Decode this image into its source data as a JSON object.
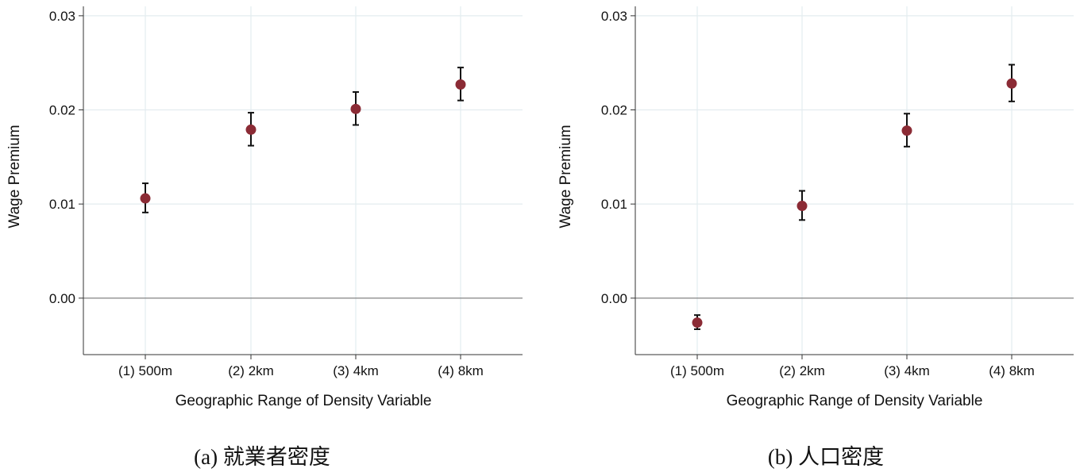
{
  "chart_data": [
    {
      "type": "scatter",
      "caption": "(a)  就業者密度",
      "xlabel": "Geographic Range of Density Variable",
      "ylabel": "Wage Premium",
      "categories": [
        "(1) 500m",
        "(2) 2km",
        "(3) 4km",
        "(4) 8km"
      ],
      "values": [
        0.0106,
        0.0179,
        0.0201,
        0.0227
      ],
      "ci_low": [
        0.0091,
        0.0162,
        0.0184,
        0.021
      ],
      "ci_high": [
        0.0122,
        0.0197,
        0.0219,
        0.0245
      ],
      "yticks": [
        0.0,
        0.01,
        0.02,
        0.03
      ],
      "ytick_labels": [
        "0.00",
        "0.01",
        "0.02",
        "0.03"
      ],
      "ylim": [
        -0.006,
        0.031
      ],
      "grid": true,
      "reference_line": 0
    },
    {
      "type": "scatter",
      "caption": "(b)  人口密度",
      "xlabel": "Geographic Range of Density Variable",
      "ylabel": "Wage Premium",
      "categories": [
        "(1) 500m",
        "(2) 2km",
        "(3) 4km",
        "(4) 8km"
      ],
      "values": [
        -0.0026,
        0.0098,
        0.0178,
        0.0228
      ],
      "ci_low": [
        -0.0033,
        0.0083,
        0.0161,
        0.0209
      ],
      "ci_high": [
        -0.0018,
        0.0114,
        0.0196,
        0.0248
      ],
      "yticks": [
        0.0,
        0.01,
        0.02,
        0.03
      ],
      "ytick_labels": [
        "0.00",
        "0.01",
        "0.02",
        "0.03"
      ],
      "ylim": [
        -0.006,
        0.031
      ],
      "grid": true,
      "reference_line": 0
    }
  ],
  "colors": {
    "marker": "#8b2b35",
    "errorbar": "#111111",
    "grid": "#e3ecef",
    "axis": "#333333",
    "zero_line": "#777777"
  }
}
